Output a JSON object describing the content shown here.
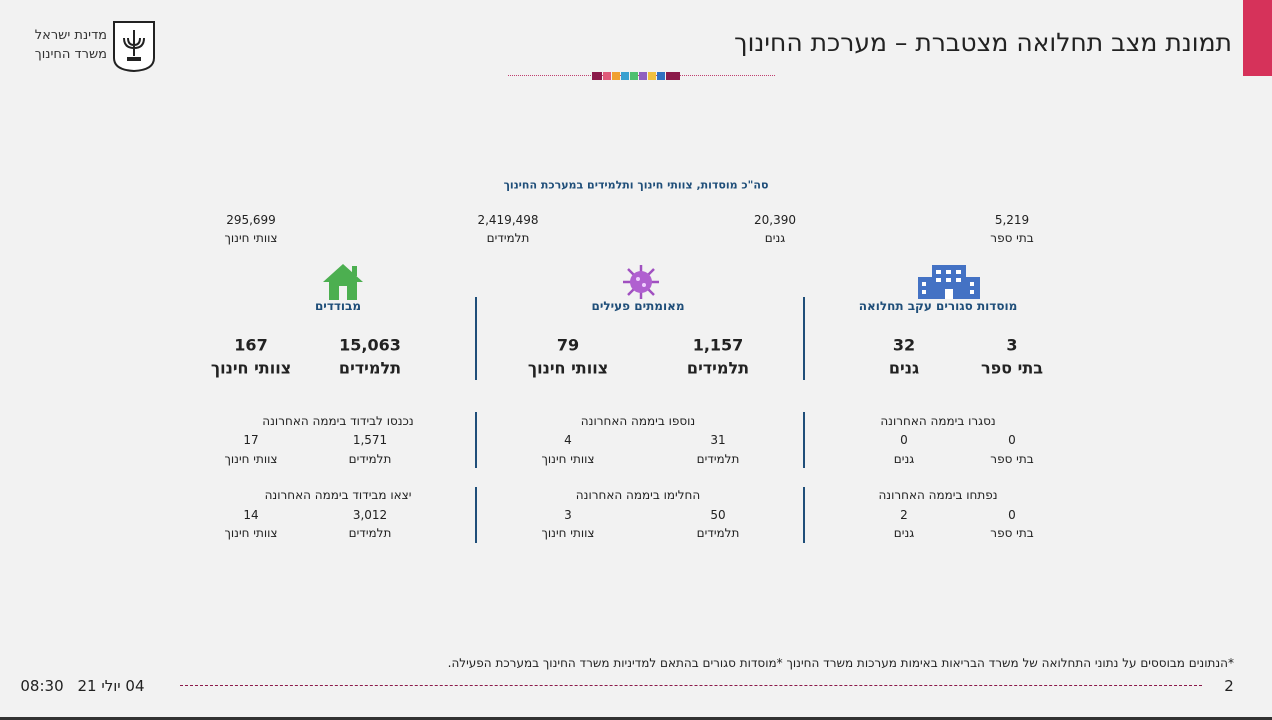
{
  "header": {
    "title": "תמונת מצב תחלואה מצטברת – מערכת החינוך",
    "ministry": [
      "מדינת ישראל",
      "משרד החינוך"
    ]
  },
  "summary": {
    "title": "סה\"כ מוסדות, צוותי חינוך ותלמידים במערכת החינוך",
    "items": [
      {
        "value": "5,219",
        "label": "בתי ספר"
      },
      {
        "value": "20,390",
        "label": "גנים"
      },
      {
        "value": "2,419,498",
        "label": "תלמידים"
      },
      {
        "value": "295,699",
        "label": "צוותי חינוך"
      }
    ]
  },
  "columns": [
    {
      "heading": "מוסדות סגורים עקב תחלואה",
      "main": [
        {
          "value": "3",
          "label": "בתי ספר"
        },
        {
          "value": "32",
          "label": "גנים"
        }
      ],
      "blocks": [
        {
          "title": "נסגרו ביממה האחרונה",
          "items": [
            {
              "value": "0",
              "label": "בתי ספר"
            },
            {
              "value": "0",
              "label": "גנים"
            }
          ]
        },
        {
          "title": "נפתחו ביממה האחרונה",
          "items": [
            {
              "value": "0",
              "label": "בתי ספר"
            },
            {
              "value": "2",
              "label": "גנים"
            }
          ]
        }
      ]
    },
    {
      "heading": "מאומתים פעילים",
      "main": [
        {
          "value": "1,157",
          "label": "תלמידים"
        },
        {
          "value": "79",
          "label": "צוותי חינוך"
        }
      ],
      "blocks": [
        {
          "title": "נוספו ביממה האחרונה",
          "items": [
            {
              "value": "31",
              "label": "תלמידים"
            },
            {
              "value": "4",
              "label": "צוותי חינוך"
            }
          ]
        },
        {
          "title": "החלימו ביממה האחרונה",
          "items": [
            {
              "value": "50",
              "label": "תלמידים"
            },
            {
              "value": "3",
              "label": "צוותי חינוך"
            }
          ]
        }
      ]
    },
    {
      "heading": "מבודדים",
      "main": [
        {
          "value": "15,063",
          "label": "תלמידים"
        },
        {
          "value": "167",
          "label": "צוותי חינוך"
        }
      ],
      "blocks": [
        {
          "title": "נכנסו לבידוד ביממה האחרונה",
          "items": [
            {
              "value": "1,571",
              "label": "תלמידים"
            },
            {
              "value": "17",
              "label": "צוותי חינוך"
            }
          ]
        },
        {
          "title": "יצאו מבידוד ביממה האחרונה",
          "items": [
            {
              "value": "3,012",
              "label": "תלמידים"
            },
            {
              "value": "14",
              "label": "צוותי חינוך"
            }
          ]
        }
      ]
    }
  ],
  "footer": {
    "note": "*הנתונים מבוססים על נתוני התחלואה של משרד הבריאות באימות מערכות משרד החינוך  *מוסדות סגורים בהתאם למדיניות משרד החינוך במערכת הפעילה.",
    "date": "04 יולי 21",
    "time": "08:30",
    "page": "2"
  }
}
